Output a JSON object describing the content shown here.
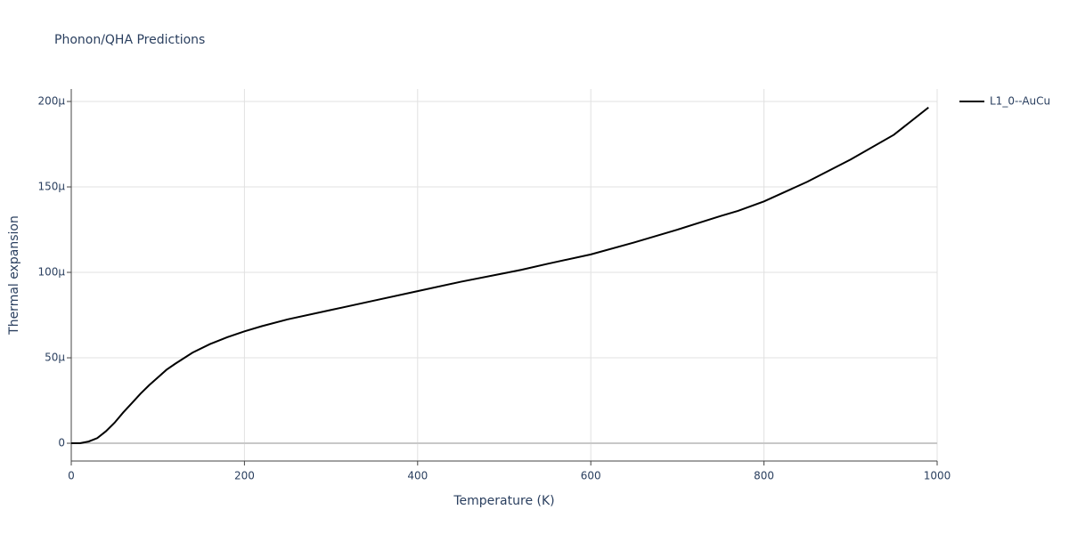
{
  "chart_data": {
    "type": "line",
    "title": "Phonon/QHA Predictions",
    "x_label": "Temperature (K)",
    "y_label": "Thermal expansion",
    "x": [
      0,
      10,
      20,
      30,
      40,
      50,
      60,
      70,
      80,
      90,
      100,
      110,
      120,
      140,
      160,
      180,
      200,
      220,
      250,
      300,
      350,
      400,
      450,
      500,
      520,
      550,
      600,
      650,
      700,
      750,
      770,
      800,
      850,
      900,
      950,
      990
    ],
    "series": [
      {
        "name": "L1_0--AuCu",
        "color": "#000000",
        "values": [
          0,
          0,
          1e-06,
          3e-06,
          7e-06,
          1.2e-05,
          1.8e-05,
          2.35e-05,
          2.9e-05,
          3.4e-05,
          3.85e-05,
          4.3e-05,
          4.65e-05,
          5.3e-05,
          5.8e-05,
          6.2e-05,
          6.55e-05,
          6.85e-05,
          7.25e-05,
          7.8e-05,
          8.35e-05,
          8.9e-05,
          9.45e-05,
          9.95e-05,
          0.0001015,
          0.000105,
          0.0001105,
          0.0001175,
          0.000125,
          0.000133,
          0.000136,
          0.0001415,
          0.000153,
          0.000166,
          0.0001805,
          0.0001965
        ]
      }
    ],
    "xlim": [
      0,
      1000
    ],
    "xticks": [
      0,
      200,
      400,
      600,
      800,
      1000
    ],
    "ylim": [
      -1.04e-05,
      0.0002073
    ],
    "yticks": [
      0,
      {
        "value": 5e-05,
        "label": "50μ"
      },
      {
        "value": 0.0001,
        "label": "100μ"
      },
      {
        "value": 0.00015,
        "label": "150μ"
      },
      {
        "value": 0.0002,
        "label": "200μ"
      }
    ],
    "grid": true,
    "legend": "right"
  }
}
